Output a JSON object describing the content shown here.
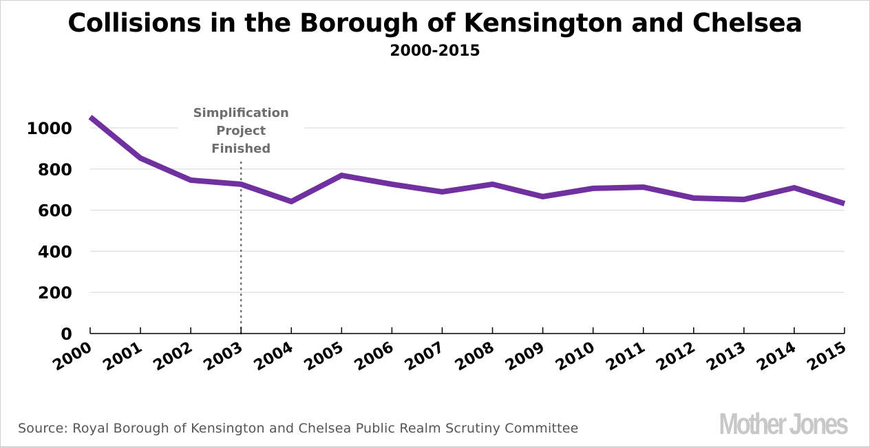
{
  "chart_data": {
    "type": "line",
    "title": "Collisions in the Borough of Kensington and Chelsea",
    "subtitle": "2000-2015",
    "xlabel": "",
    "ylabel": "",
    "ylim": [
      0,
      1000
    ],
    "yticks": [
      "0",
      "200",
      "400",
      "600",
      "800",
      "1000"
    ],
    "ytick_values": [
      0,
      200,
      400,
      600,
      800,
      1000
    ],
    "categories": [
      "2000",
      "2001",
      "2002",
      "2003",
      "2004",
      "2005",
      "2006",
      "2007",
      "2008",
      "2009",
      "2010",
      "2011",
      "2012",
      "2013",
      "2014",
      "2015"
    ],
    "series": [
      {
        "name": "Collisions",
        "color": "#7030a0",
        "values": [
          1053,
          853,
          746,
          726,
          642,
          769,
          726,
          689,
          726,
          666,
          706,
          712,
          659,
          652,
          709,
          632
        ]
      }
    ],
    "grid": true,
    "annotation": {
      "at_category": "2003",
      "lines": [
        "Simplification",
        "Project",
        "Finished"
      ],
      "color": "#6e6e6e"
    }
  },
  "footer": {
    "source": "Source: Royal Borough of Kensington and Chelsea Public Realm Scrutiny Committee",
    "logo": "Mother Jones"
  }
}
